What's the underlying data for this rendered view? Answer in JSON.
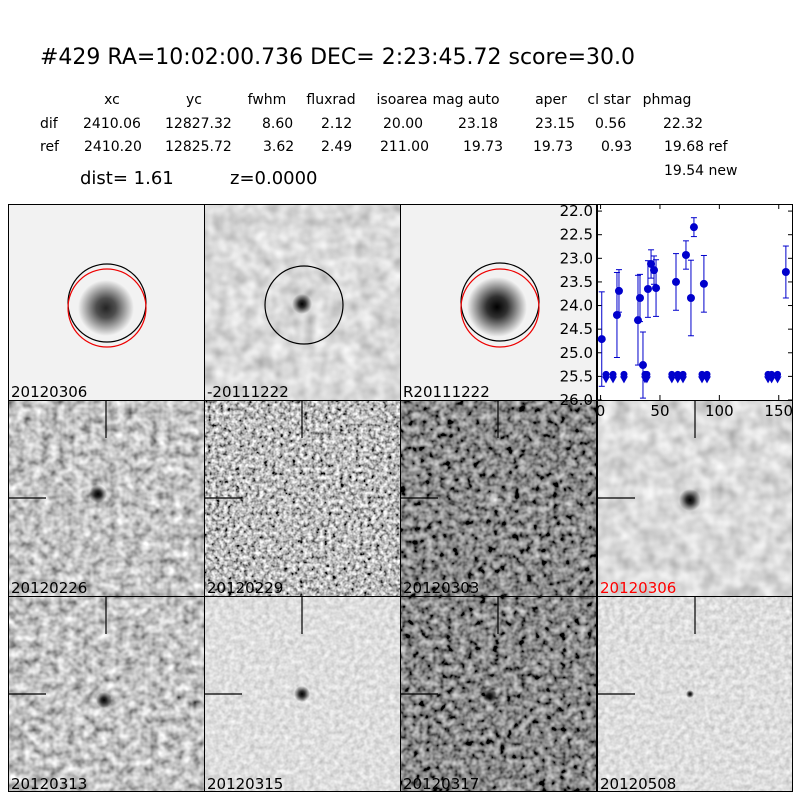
{
  "header": {
    "title": "#429   RA=10:02:00.736 DEC= 2:23:45.72       score=30.0",
    "columns": [
      "xc",
      "yc",
      "fwhm",
      "fluxrad",
      "isoarea",
      "mag auto",
      "aper",
      "cl star",
      "phmag"
    ],
    "rows": [
      {
        "label": "dif",
        "cells": [
          "2410.06",
          "12827.32",
          "8.60",
          "2.12",
          "20.00",
          "23.18",
          "23.15",
          "0.56",
          "22.32"
        ]
      },
      {
        "label": "ref",
        "cells": [
          "2410.20",
          "12825.72",
          "3.62",
          "2.49",
          "211.00",
          "19.73",
          "19.73",
          "0.93",
          "19.68 ref"
        ]
      }
    ],
    "extra": "19.54 new",
    "dist": "dist=  1.61",
    "z": "z=0.0000"
  },
  "panels": [
    {
      "label": "20120306"
    },
    {
      "label": "-20111222"
    },
    {
      "label": "R20111222"
    },
    {
      "label": "20120226"
    },
    {
      "label": "20120229"
    },
    {
      "label": "20120303"
    },
    {
      "label": "20120306",
      "color": "#ff0000"
    },
    {
      "label": "20120313"
    },
    {
      "label": "20120315"
    },
    {
      "label": "20120317"
    },
    {
      "label": "20120508"
    }
  ],
  "chart_data": {
    "type": "errorbar",
    "color": "#0000cc",
    "x": [
      1,
      13.8,
      15.5,
      31.5,
      33.2,
      35.7,
      39.9,
      42.5,
      45,
      46.7,
      63.5,
      71.9,
      76.1,
      78.6,
      87,
      156
    ],
    "values": [
      24.71,
      24.2,
      23.69,
      24.31,
      23.84,
      25.26,
      23.65,
      23.12,
      23.25,
      23.63,
      23.5,
      22.93,
      23.84,
      22.34,
      23.54,
      23.29
    ],
    "errors": [
      1.0,
      0.9,
      0.45,
      0.95,
      0.5,
      0.7,
      0.6,
      0.3,
      0.3,
      0.6,
      0.6,
      0.3,
      0.8,
      0.2,
      0.6,
      0.55
    ],
    "limit_x": [
      4.6,
      10.5,
      19.7,
      37.4,
      39,
      60,
      65,
      69.4,
      85.4,
      89.6,
      141,
      144,
      149
    ],
    "limit_values": [
      25.5,
      25.5,
      25.5,
      25.5,
      25.5,
      25.5,
      25.5,
      25.5,
      25.5,
      25.5,
      25.5,
      25.5,
      25.5
    ],
    "xlim": [
      -3,
      162
    ],
    "xticks": [
      0,
      50,
      100,
      150
    ],
    "ylim": [
      26,
      21.85
    ],
    "yticks": [
      {
        "value": 22,
        "label": "22.0"
      },
      {
        "value": 22.5,
        "label": "22.5"
      },
      {
        "value": 23,
        "label": "23.0"
      },
      {
        "value": 23.5,
        "label": "23.5"
      },
      {
        "value": 24,
        "label": "24.0"
      },
      {
        "value": 24.5,
        "label": "24.5"
      },
      {
        "value": 25,
        "label": "25.0"
      },
      {
        "value": 25.5,
        "label": "25.5"
      },
      {
        "value": 26,
        "label": "26.0"
      }
    ]
  }
}
